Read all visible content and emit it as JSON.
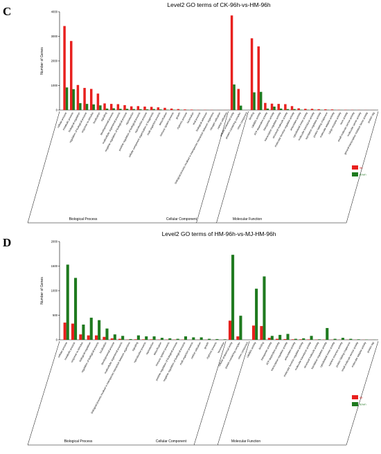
{
  "chart_data": [
    {
      "type": "bar",
      "panel": "C",
      "title": "Level2 GO terms of CK-96h-vs-HM-96h",
      "ylabel": "Number of Genes",
      "ylim": [
        0,
        4000
      ],
      "yticks": [
        "0",
        "1000",
        "2000",
        "3000",
        "4000"
      ],
      "groups": [
        "Biological Process",
        "Cellular Component",
        "Molecular Function"
      ],
      "categories": [
        "cellular process",
        "metabolic process",
        "biological regulation",
        "regulation of biological process",
        "response to stimulus",
        "localization",
        "signaling",
        "developmental process",
        "multicellular organismal process",
        "negative regulation of biological process",
        "reproduction",
        "positive regulation of biological process",
        "reproductive process",
        "cellular component organization or biogenesis",
        "multi-organism process",
        "detoxification",
        "immune system process",
        "growth",
        "rhythmic process",
        "locomotion",
        "viral process",
        "biological adhesion",
        "biological process involved in interspecies interaction between organisms",
        "nitrogen utilization",
        "carbon utilization",
        "cellular anatomical entity",
        "protein-containing complex",
        "virion component",
        "binding",
        "catalytic activity",
        "ATP-dependent activity",
        "transporter activity",
        "transcription regulator activity",
        "structural molecule activity",
        "molecular function regulator activity",
        "antioxidant activity",
        "cytoskeletal motor activity",
        "molecular transducer activity",
        "translation regulator activity",
        "protein folding chaperone",
        "molecular adaptor activity",
        "cargo receptor activity",
        "toxin activity",
        "small molecule sensor activity",
        "molecular carrier activity",
        "general transcription initiation factor activity",
        "protein tag"
      ],
      "series": [
        {
          "name": "up",
          "color": "#e8201e",
          "values": [
            3420,
            2810,
            1020,
            900,
            860,
            670,
            270,
            250,
            240,
            200,
            150,
            160,
            140,
            130,
            110,
            90,
            60,
            40,
            25,
            18,
            8,
            8,
            5,
            3,
            3,
            3850,
            860,
            0,
            2920,
            2590,
            290,
            260,
            250,
            240,
            160,
            70,
            50,
            50,
            35,
            30,
            25,
            12,
            10,
            8,
            6,
            4,
            2
          ]
        },
        {
          "name": "down",
          "color": "#1f7a1f",
          "values": [
            920,
            850,
            280,
            250,
            230,
            190,
            60,
            70,
            50,
            50,
            40,
            35,
            30,
            40,
            25,
            15,
            12,
            8,
            5,
            4,
            2,
            2,
            1,
            1,
            1,
            1040,
            180,
            0,
            720,
            740,
            60,
            140,
            60,
            40,
            40,
            15,
            10,
            10,
            8,
            6,
            5,
            3,
            2,
            2,
            1,
            1,
            1
          ]
        }
      ]
    },
    {
      "type": "bar",
      "panel": "D",
      "title": "Level2 GO terms of HM-96h-vs-MJ-HM-96h",
      "ylabel": "Number of Genes",
      "ylim": [
        0,
        2000
      ],
      "yticks": [
        "0",
        "500",
        "1000",
        "1500",
        "2000"
      ],
      "groups": [
        "Biological Process",
        "Cellular Component",
        "Molecular Function"
      ],
      "categories": [
        "cellular process",
        "metabolic process",
        "response to stimulus",
        "biological regulation",
        "regulation of biological process",
        "localization",
        "developmental process",
        "multicellular organismal process",
        "biological process involved in interspecies interaction between organisms",
        "signaling",
        "reproductive process",
        "reproduction",
        "detoxification",
        "immune system process",
        "positive regulation of biological process",
        "negative regulation of biological process",
        "multi-organism process",
        "carbon utilization",
        "growth",
        "rhythmic process",
        "locomotion",
        "cellular anatomical entity",
        "protein-containing complex",
        "virion component",
        "catalytic activity",
        "binding",
        "transporter activity",
        "ATP-dependent activity",
        "transcription regulator activity",
        "antioxidant activity",
        "molecular function regulator activity",
        "molecular transducer activity",
        "structural molecule activity",
        "translation regulator activity",
        "cytoskeletal motor activity",
        "nutrient reservoir activity",
        "protein folding chaperone",
        "small molecule sensor activity",
        "molecular adaptor activity",
        "protein tag"
      ],
      "series": [
        {
          "name": "up",
          "color": "#e8201e",
          "values": [
            350,
            330,
            110,
            90,
            90,
            60,
            30,
            20,
            5,
            10,
            10,
            10,
            5,
            5,
            5,
            5,
            2,
            2,
            2,
            1,
            1,
            390,
            70,
            0,
            290,
            280,
            40,
            20,
            15,
            10,
            10,
            8,
            5,
            5,
            3,
            3,
            3,
            2,
            2,
            1
          ]
        },
        {
          "name": "down",
          "color": "#1f7a1f",
          "values": [
            1530,
            1260,
            310,
            450,
            400,
            230,
            110,
            80,
            15,
            90,
            70,
            70,
            40,
            30,
            20,
            70,
            50,
            50,
            20,
            15,
            10,
            1730,
            490,
            0,
            1040,
            1290,
            80,
            100,
            120,
            20,
            30,
            80,
            10,
            240,
            20,
            40,
            20,
            10,
            5,
            2
          ]
        }
      ]
    }
  ],
  "legend_labels": {
    "up": "up",
    "down": "down"
  }
}
